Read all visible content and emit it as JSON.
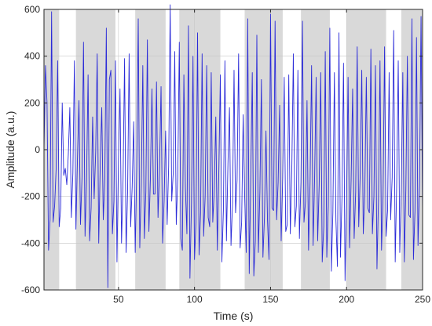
{
  "chart_data": {
    "type": "line",
    "xlabel": "Time (s)",
    "ylabel": "Amplitude (a.u.)",
    "xlim": [
      1,
      250
    ],
    "ylim": [
      -600,
      600
    ],
    "x_ticks": [
      50,
      100,
      150,
      200,
      250
    ],
    "y_ticks": [
      -600,
      -400,
      -200,
      0,
      200,
      400,
      600
    ],
    "grid": true,
    "shaded_intervals": [
      [
        1,
        11
      ],
      [
        22,
        48
      ],
      [
        61,
        81
      ],
      [
        90,
        117
      ],
      [
        133,
        158
      ],
      [
        170,
        189
      ],
      [
        200,
        226
      ],
      [
        236,
        250
      ]
    ],
    "shade_color": "#d9d9d9",
    "series": [
      {
        "color": "#2b2bd8",
        "x": [
          1,
          2,
          3,
          4,
          5,
          6,
          7,
          8,
          9,
          10,
          11,
          12,
          13,
          14,
          15,
          16,
          17,
          18,
          19,
          20,
          21,
          22,
          23,
          24,
          25,
          26,
          27,
          28,
          29,
          30,
          31,
          32,
          33,
          34,
          35,
          36,
          37,
          38,
          39,
          40,
          41,
          42,
          43,
          44,
          45,
          46,
          47,
          48,
          49,
          50,
          51,
          52,
          53,
          54,
          55,
          56,
          57,
          58,
          59,
          60,
          61,
          62,
          63,
          64,
          65,
          66,
          67,
          68,
          69,
          70,
          71,
          72,
          73,
          74,
          75,
          76,
          77,
          78,
          79,
          80,
          81,
          82,
          83,
          84,
          85,
          86,
          87,
          88,
          89,
          90,
          91,
          92,
          93,
          94,
          95,
          96,
          97,
          98,
          99,
          100,
          101,
          102,
          103,
          104,
          105,
          106,
          107,
          108,
          109,
          110,
          111,
          112,
          113,
          114,
          115,
          116,
          117,
          118,
          119,
          120,
          121,
          122,
          123,
          124,
          125,
          126,
          127,
          128,
          129,
          130,
          131,
          132,
          133,
          134,
          135,
          136,
          137,
          138,
          139,
          140,
          141,
          142,
          143,
          144,
          145,
          146,
          147,
          148,
          149,
          150,
          151,
          152,
          153,
          154,
          155,
          156,
          157,
          158,
          159,
          160,
          161,
          162,
          163,
          164,
          165,
          166,
          167,
          168,
          169,
          170,
          171,
          172,
          173,
          174,
          175,
          176,
          177,
          178,
          179,
          180,
          181,
          182,
          183,
          184,
          185,
          186,
          187,
          188,
          189,
          190,
          191,
          192,
          193,
          194,
          195,
          196,
          197,
          198,
          199,
          200,
          201,
          202,
          203,
          204,
          205,
          206,
          207,
          208,
          209,
          210,
          211,
          212,
          213,
          214,
          215,
          216,
          217,
          218,
          219,
          220,
          221,
          222,
          223,
          224,
          225,
          226,
          227,
          228,
          229,
          230,
          231,
          232,
          233,
          234,
          235,
          236,
          237,
          238,
          239,
          240,
          241,
          242,
          243,
          244,
          245,
          246,
          247,
          248,
          249,
          250
        ],
        "y": [
          0,
          360,
          200,
          -430,
          -300,
          590,
          -310,
          -240,
          -80,
          380,
          -330,
          -250,
          200,
          -110,
          -80,
          -150,
          -20,
          180,
          -290,
          -100,
          380,
          -340,
          -40,
          210,
          -320,
          -120,
          460,
          -370,
          -130,
          320,
          -390,
          -250,
          140,
          -210,
          -10,
          410,
          -400,
          -60,
          180,
          -300,
          -120,
          520,
          -590,
          300,
          340,
          -360,
          -220,
          380,
          -480,
          -40,
          260,
          -400,
          -130,
          390,
          -440,
          -180,
          410,
          -330,
          -160,
          120,
          -440,
          -80,
          560,
          -420,
          -150,
          360,
          -380,
          -180,
          470,
          -350,
          -120,
          260,
          -190,
          -190,
          290,
          -290,
          -80,
          270,
          -400,
          -220,
          80,
          -320,
          -70,
          620,
          -220,
          -100,
          420,
          -320,
          -120,
          460,
          -380,
          -430,
          320,
          -160,
          -360,
          530,
          -550,
          -230,
          400,
          -470,
          -300,
          500,
          -450,
          -270,
          410,
          -370,
          -200,
          360,
          -290,
          -330,
          330,
          -310,
          -170,
          140,
          -430,
          -90,
          320,
          -480,
          -260,
          380,
          -390,
          -60,
          180,
          -410,
          -230,
          340,
          -270,
          -130,
          410,
          -420,
          -310,
          150,
          -200,
          -440,
          560,
          -530,
          -120,
          330,
          -540,
          -390,
          490,
          -440,
          -180,
          300,
          -460,
          -290,
          80,
          -300,
          -470,
          580,
          -250,
          -260,
          550,
          -300,
          -140,
          190,
          -390,
          -120,
          310,
          -350,
          -320,
          320,
          -360,
          -80,
          410,
          -330,
          -240,
          340,
          -380,
          -140,
          550,
          -310,
          -220,
          210,
          -430,
          -140,
          360,
          -410,
          -120,
          310,
          -390,
          -150,
          330,
          -480,
          -330,
          420,
          -460,
          -240,
          520,
          -520,
          -270,
          330,
          -300,
          -500,
          500,
          -460,
          -200,
          370,
          -560,
          -230,
          310,
          -420,
          -130,
          260,
          -380,
          -180,
          440,
          -330,
          -100,
          340,
          -360,
          -180,
          310,
          -250,
          -270,
          430,
          -360,
          -200,
          360,
          -510,
          -210,
          380,
          -430,
          -200,
          440,
          -370,
          -260,
          330,
          -300,
          -120,
          510,
          -480,
          -140,
          380,
          -440,
          -170,
          330,
          -480,
          -170,
          400,
          -280,
          -290,
          560,
          -470,
          -260,
          480,
          -410,
          -150,
          570,
          -270
        ]
      }
    ]
  }
}
